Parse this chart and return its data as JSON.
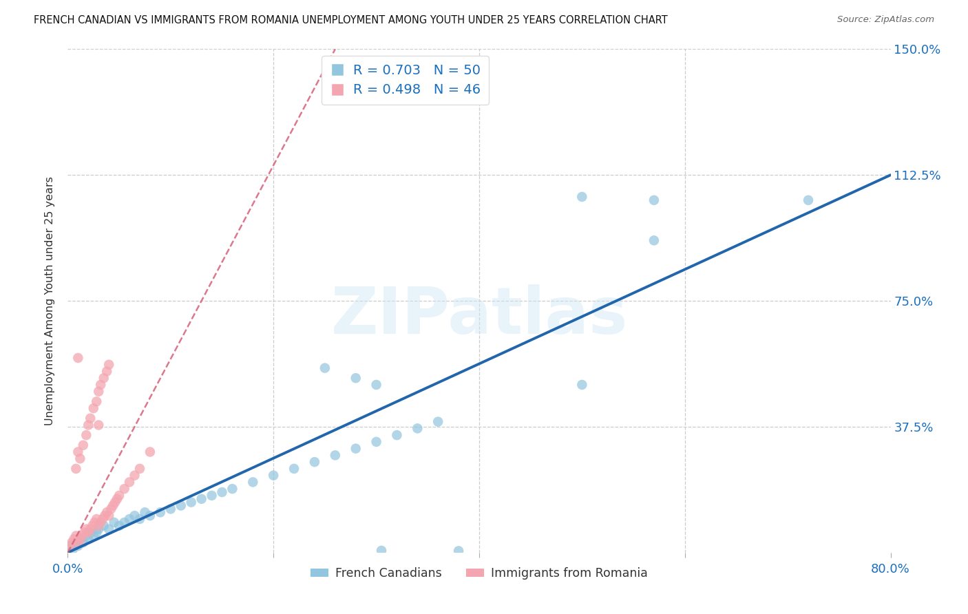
{
  "title": "FRENCH CANADIAN VS IMMIGRANTS FROM ROMANIA UNEMPLOYMENT AMONG YOUTH UNDER 25 YEARS CORRELATION CHART",
  "source": "Source: ZipAtlas.com",
  "ylabel": "Unemployment Among Youth under 25 years",
  "xlim": [
    0.0,
    0.8
  ],
  "ylim": [
    0.0,
    1.5
  ],
  "blue_color": "#92c5de",
  "pink_color": "#f4a6b0",
  "blue_line_color": "#2166ac",
  "pink_line_color": "#d6617a",
  "R_blue": 0.703,
  "N_blue": 50,
  "R_pink": 0.498,
  "N_pink": 46,
  "legend_label_blue": "French Canadians",
  "legend_label_pink": "Immigrants from Romania",
  "watermark": "ZIPatlas",
  "blue_label_color": "#1a6fbe",
  "blue_scatter_x": [
    0.002,
    0.005,
    0.008,
    0.01,
    0.012,
    0.015,
    0.018,
    0.02,
    0.022,
    0.025,
    0.028,
    0.03,
    0.035,
    0.04,
    0.045,
    0.05,
    0.055,
    0.06,
    0.065,
    0.07,
    0.075,
    0.08,
    0.09,
    0.1,
    0.11,
    0.12,
    0.13,
    0.14,
    0.15,
    0.16,
    0.18,
    0.2,
    0.22,
    0.24,
    0.26,
    0.28,
    0.3,
    0.32,
    0.34,
    0.36,
    0.25,
    0.28,
    0.3,
    0.5,
    0.72,
    0.5,
    0.57,
    0.57,
    0.305,
    0.38
  ],
  "blue_scatter_y": [
    0.02,
    0.01,
    0.03,
    0.02,
    0.04,
    0.03,
    0.05,
    0.04,
    0.06,
    0.05,
    0.06,
    0.07,
    0.08,
    0.07,
    0.09,
    0.08,
    0.09,
    0.1,
    0.11,
    0.1,
    0.12,
    0.11,
    0.12,
    0.13,
    0.14,
    0.15,
    0.16,
    0.17,
    0.18,
    0.19,
    0.21,
    0.23,
    0.25,
    0.27,
    0.29,
    0.31,
    0.33,
    0.35,
    0.37,
    0.39,
    0.55,
    0.52,
    0.5,
    0.5,
    1.05,
    1.06,
    1.05,
    0.93,
    0.006,
    0.005
  ],
  "pink_scatter_x": [
    0.002,
    0.004,
    0.006,
    0.008,
    0.01,
    0.012,
    0.014,
    0.016,
    0.018,
    0.02,
    0.022,
    0.024,
    0.026,
    0.028,
    0.03,
    0.032,
    0.034,
    0.036,
    0.038,
    0.04,
    0.042,
    0.044,
    0.046,
    0.048,
    0.05,
    0.055,
    0.06,
    0.065,
    0.07,
    0.08,
    0.008,
    0.01,
    0.012,
    0.015,
    0.018,
    0.02,
    0.022,
    0.025,
    0.028,
    0.03,
    0.032,
    0.035,
    0.038,
    0.04,
    0.01,
    0.03
  ],
  "pink_scatter_y": [
    0.02,
    0.03,
    0.04,
    0.05,
    0.03,
    0.04,
    0.05,
    0.06,
    0.07,
    0.06,
    0.07,
    0.08,
    0.09,
    0.1,
    0.08,
    0.09,
    0.1,
    0.11,
    0.12,
    0.11,
    0.13,
    0.14,
    0.15,
    0.16,
    0.17,
    0.19,
    0.21,
    0.23,
    0.25,
    0.3,
    0.25,
    0.3,
    0.28,
    0.32,
    0.35,
    0.38,
    0.4,
    0.43,
    0.45,
    0.48,
    0.5,
    0.52,
    0.54,
    0.56,
    0.58,
    0.38
  ],
  "blue_line_x": [
    0.0,
    0.8
  ],
  "blue_line_y": [
    0.0,
    1.125
  ],
  "pink_line_x": [
    0.0,
    0.26
  ],
  "pink_line_y": [
    0.0,
    1.5
  ]
}
